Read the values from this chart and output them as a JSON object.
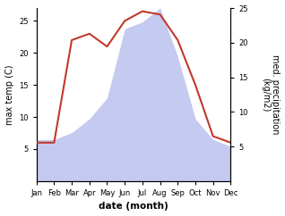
{
  "months": [
    "Jan",
    "Feb",
    "Mar",
    "Apr",
    "May",
    "Jun",
    "Jul",
    "Aug",
    "Sep",
    "Oct",
    "Nov",
    "Dec"
  ],
  "temperature": [
    6,
    6,
    22,
    23,
    21,
    25,
    26.5,
    26,
    22,
    15,
    7,
    6
  ],
  "precipitation": [
    6,
    6,
    7,
    9,
    12,
    22,
    23,
    25,
    18,
    9,
    6,
    5
  ],
  "temp_color": "#c0392b",
  "precip_color": "#c5caf0",
  "temp_ylim": [
    0,
    27
  ],
  "precip_ylim": [
    0,
    25
  ],
  "temp_yticks": [
    5,
    10,
    15,
    20,
    25
  ],
  "precip_yticks": [
    5,
    10,
    15,
    20,
    25
  ],
  "xlabel": "date (month)",
  "ylabel_left": "max temp (C)",
  "ylabel_right": "med. precipitation\n(kg/m2)",
  "background_color": "#ffffff",
  "figure_size": [
    3.18,
    2.42
  ],
  "dpi": 100
}
